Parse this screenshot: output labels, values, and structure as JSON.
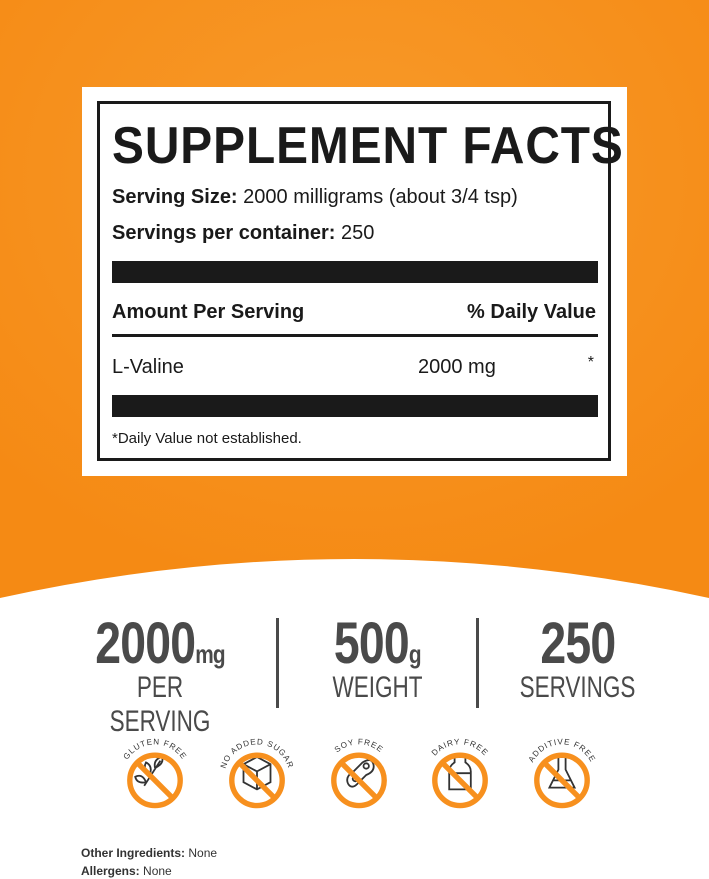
{
  "colors": {
    "brand_orange": "#f7901e",
    "text_dark": "#1a1a1a",
    "stat_gray": "#4a4a4a"
  },
  "facts": {
    "title": "SUPPLEMENT FACTS",
    "serving_size_label": "Serving Size:",
    "serving_size_value": "2000 milligrams (about 3/4 tsp)",
    "servings_label": "Servings per container:",
    "servings_value": "250",
    "col_amount": "Amount Per Serving",
    "col_dv": "% Daily Value",
    "ingredient": "L-Valine",
    "amount": "2000 mg",
    "dv": "*",
    "footnote": "*Daily Value not established."
  },
  "stats": [
    {
      "value": "2000",
      "unit": "mg",
      "label": "PER SERVING"
    },
    {
      "value": "500",
      "unit": "g",
      "label": "WEIGHT"
    },
    {
      "value": "250",
      "unit": "",
      "label": "SERVINGS"
    }
  ],
  "badges": [
    {
      "label": "GLUTEN FREE",
      "icon": "wheat-icon"
    },
    {
      "label": "NO ADDED SUGAR",
      "icon": "sugar-cube-icon"
    },
    {
      "label": "SOY FREE",
      "icon": "soybean-icon"
    },
    {
      "label": "DAIRY FREE",
      "icon": "milk-bottle-icon"
    },
    {
      "label": "ADDITIVE FREE",
      "icon": "flask-icon"
    }
  ],
  "footer": {
    "other_label": "Other Ingredients:",
    "other_value": "None",
    "allergens_label": "Allergens:",
    "allergens_value": "None"
  }
}
